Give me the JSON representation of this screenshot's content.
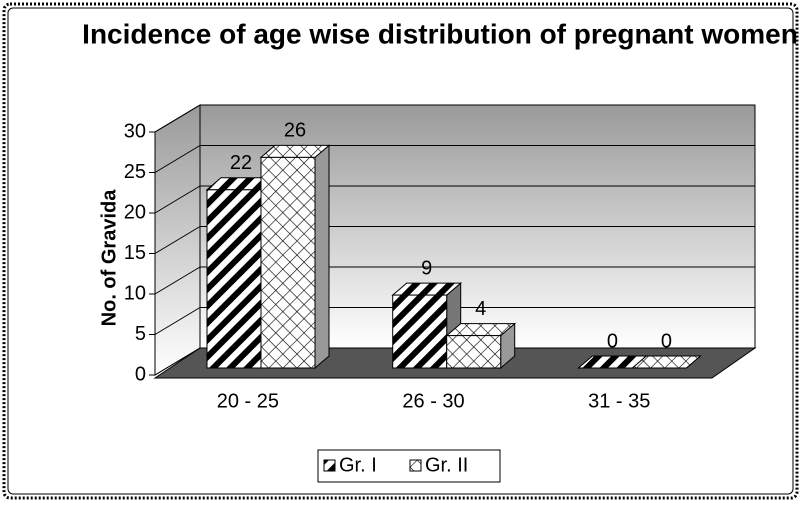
{
  "chart_data": {
    "type": "bar3d",
    "title": "Incidence of age wise distribution of pregnant women",
    "y_label": "No. of Gravida",
    "categories": [
      "20 - 25",
      "26 - 30",
      "31 - 35"
    ],
    "series": [
      {
        "name": "Gr. I",
        "color": "#000000",
        "values": [
          22,
          9,
          0
        ]
      },
      {
        "name": "Gr. II",
        "color": "#555555",
        "values": [
          26,
          4,
          0
        ]
      }
    ],
    "ylim": [
      0,
      30
    ],
    "yticks": [
      0,
      5,
      10,
      15,
      20,
      25,
      30
    ],
    "grid": true,
    "legend": "bottom"
  }
}
